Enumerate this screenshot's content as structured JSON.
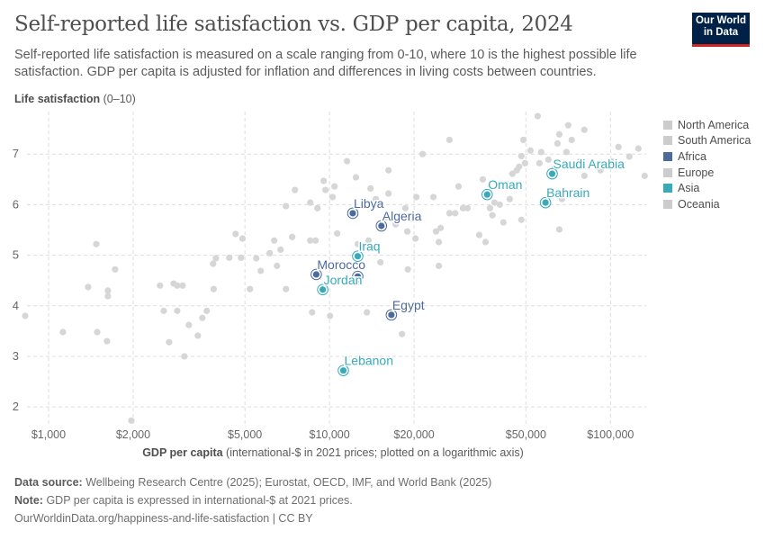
{
  "title": "Self-reported life satisfaction vs. GDP per capita, 2024",
  "subtitle": "Self-reported life satisfaction is measured on a scale ranging from 0-10, where 10 is the highest possible life satisfaction. GDP per capita is adjusted for inflation and differences in living costs between countries.",
  "logo": {
    "line1": "Our World",
    "line2": "in Data",
    "bg": "#002147",
    "accent": "#ce261e"
  },
  "footer": {
    "source_label": "Data source:",
    "source_text": "Wellbeing Research Centre (2025); Eurostat, OECD, IMF, and World Bank (2025)",
    "note_label": "Note:",
    "note_text": "GDP per capita is expressed in international-$ at 2021 prices.",
    "url": "OurWorldinData.org/happiness-and-life-satisfaction | CC BY"
  },
  "chart_data": {
    "type": "scatter",
    "title": "Self-reported life satisfaction vs. GDP per capita, 2024",
    "ylabel_bold": "Life satisfaction",
    "ylabel_rest": " (0–10)",
    "xlabel_bold": "GDP per capita",
    "xlabel_rest": " (international-$ in 2021 prices; plotted on a logarithmic axis)",
    "xscale": "log",
    "xlim": [
      790,
      134000
    ],
    "ylim": [
      1.7,
      7.84
    ],
    "grid": true,
    "xticks": [
      1000,
      2000,
      5000,
      10000,
      20000,
      50000,
      100000
    ],
    "xtick_labels": [
      "$1,000",
      "$2,000",
      "$5,000",
      "$10,000",
      "$20,000",
      "$50,000",
      "$100,000"
    ],
    "yticks": [
      2,
      3,
      4,
      5,
      6,
      7
    ],
    "ytick_labels": [
      "2",
      "3",
      "4",
      "5",
      "6",
      "7"
    ],
    "legend_position": "right",
    "legend": [
      {
        "name": "North America",
        "color": "#cccccc"
      },
      {
        "name": "South America",
        "color": "#cccccc"
      },
      {
        "name": "Africa",
        "color": "#4c6a9c"
      },
      {
        "name": "Europe",
        "color": "#cccccc"
      },
      {
        "name": "Asia",
        "color": "#38aaba"
      },
      {
        "name": "Oceania",
        "color": "#cccccc"
      }
    ],
    "highlighted": [
      {
        "name": "Libya",
        "region": "Africa",
        "gdp": 12100,
        "ls": 5.83
      },
      {
        "name": "Algeria",
        "region": "Africa",
        "gdp": 15300,
        "ls": 5.58
      },
      {
        "name": "Morocco",
        "region": "Africa",
        "gdp": 8970,
        "ls": 4.62
      },
      {
        "name": "Egypt",
        "region": "Africa",
        "gdp": 16600,
        "ls": 3.82
      },
      {
        "name": "",
        "region": "Africa",
        "gdp": 12600,
        "ls": 4.58
      },
      {
        "name": "Iraq",
        "region": "Asia",
        "gdp": 12600,
        "ls": 4.98
      },
      {
        "name": "Jordan",
        "region": "Asia",
        "gdp": 9460,
        "ls": 4.32
      },
      {
        "name": "Lebanon",
        "region": "Asia",
        "gdp": 11200,
        "ls": 2.72
      },
      {
        "name": "Oman",
        "region": "Asia",
        "gdp": 36400,
        "ls": 6.2
      },
      {
        "name": "Saudi Arabia",
        "region": "Asia",
        "gdp": 62000,
        "ls": 6.61
      },
      {
        "name": "Bahrain",
        "region": "Asia",
        "gdp": 58700,
        "ls": 6.04
      }
    ],
    "other_points": [
      [
        826,
        3.8
      ],
      [
        1125,
        3.48
      ],
      [
        1383,
        4.37
      ],
      [
        1479,
        5.22
      ],
      [
        1490,
        3.48
      ],
      [
        1614,
        3.3
      ],
      [
        1626,
        4.3
      ],
      [
        1626,
        4.19
      ],
      [
        1725,
        4.72
      ],
      [
        1970,
        1.73
      ],
      [
        2493,
        4.4
      ],
      [
        2570,
        3.9
      ],
      [
        2686,
        3.28
      ],
      [
        2787,
        4.44
      ],
      [
        2871,
        4.4
      ],
      [
        2871,
        3.9
      ],
      [
        3001,
        4.4
      ],
      [
        3043,
        3.0
      ],
      [
        3157,
        3.62
      ],
      [
        3398,
        3.41
      ],
      [
        3526,
        3.76
      ],
      [
        3657,
        3.9
      ],
      [
        3852,
        4.83
      ],
      [
        3870,
        4.33
      ],
      [
        3939,
        4.94
      ],
      [
        4398,
        4.95
      ],
      [
        4632,
        5.42
      ],
      [
        4842,
        4.95
      ],
      [
        4900,
        5.33
      ],
      [
        5210,
        4.33
      ],
      [
        5487,
        4.94
      ],
      [
        5690,
        4.69
      ],
      [
        6124,
        5.04
      ],
      [
        6355,
        5.29
      ],
      [
        6500,
        4.79
      ],
      [
        6694,
        5.11
      ],
      [
        6997,
        5.97
      ],
      [
        6997,
        4.33
      ],
      [
        7364,
        5.36
      ],
      [
        7530,
        6.29
      ],
      [
        8539,
        5.29
      ],
      [
        8539,
        6.04
      ],
      [
        8670,
        3.87
      ],
      [
        8919,
        5.29
      ],
      [
        9057,
        5.93
      ],
      [
        9529,
        6.47
      ],
      [
        9675,
        6.29
      ],
      [
        10040,
        3.8
      ],
      [
        10260,
        6.15
      ],
      [
        10420,
        6.36
      ],
      [
        10650,
        5.43
      ],
      [
        11540,
        6.86
      ],
      [
        12420,
        6.54
      ],
      [
        12610,
        5.22
      ],
      [
        13580,
        3.87
      ],
      [
        13770,
        5.29
      ],
      [
        13990,
        6.32
      ],
      [
        14620,
        6.11
      ],
      [
        15170,
        4.86
      ],
      [
        15970,
        5.75
      ],
      [
        16210,
        6.22
      ],
      [
        16210,
        6.68
      ],
      [
        17190,
        5.61
      ],
      [
        18110,
        3.44
      ],
      [
        18620,
        5.93
      ],
      [
        18920,
        5.47
      ],
      [
        19000,
        4.72
      ],
      [
        19630,
        5.72
      ],
      [
        20220,
        5.33
      ],
      [
        20370,
        6.15
      ],
      [
        21440,
        7.0
      ],
      [
        23430,
        6.15
      ],
      [
        23940,
        5.47
      ],
      [
        24490,
        4.79
      ],
      [
        24490,
        5.26
      ],
      [
        24850,
        5.54
      ],
      [
        26730,
        5.83
      ],
      [
        28000,
        5.83
      ],
      [
        26730,
        7.28
      ],
      [
        28790,
        6.36
      ],
      [
        29860,
        5.93
      ],
      [
        30970,
        5.93
      ],
      [
        34100,
        5.4
      ],
      [
        35120,
        6.5
      ],
      [
        35920,
        5.26
      ],
      [
        37260,
        5.93
      ],
      [
        38000,
        5.79
      ],
      [
        38650,
        6.04
      ],
      [
        40380,
        6.0
      ],
      [
        43150,
        6.4
      ],
      [
        43800,
        6.11
      ],
      [
        44760,
        6.61
      ],
      [
        46430,
        6.68
      ],
      [
        47300,
        6.75
      ],
      [
        48170,
        6.96
      ],
      [
        49000,
        7.28
      ],
      [
        49640,
        6.82
      ],
      [
        51880,
        7.07
      ],
      [
        55870,
        6.82
      ],
      [
        56690,
        7.04
      ],
      [
        60130,
        6.89
      ],
      [
        64760,
        7.21
      ],
      [
        65740,
        7.39
      ],
      [
        67190,
        6.11
      ],
      [
        69700,
        7.04
      ],
      [
        70720,
        7.57
      ],
      [
        72770,
        7.28
      ],
      [
        76170,
        6.79
      ],
      [
        77830,
        6.86
      ],
      [
        79530,
        6.25
      ],
      [
        80720,
        6.57
      ],
      [
        92200,
        6.68
      ],
      [
        100700,
        6.86
      ],
      [
        106800,
        7.14
      ],
      [
        116700,
        6.95
      ],
      [
        125700,
        7.11
      ],
      [
        132300,
        6.57
      ],
      [
        55060,
        7.75
      ],
      [
        63390,
        6.72
      ],
      [
        80720,
        7.48
      ],
      [
        48170,
        5.7
      ],
      [
        41590,
        5.65
      ],
      [
        65740,
        5.51
      ]
    ],
    "other_color": "#d6d6d6"
  }
}
